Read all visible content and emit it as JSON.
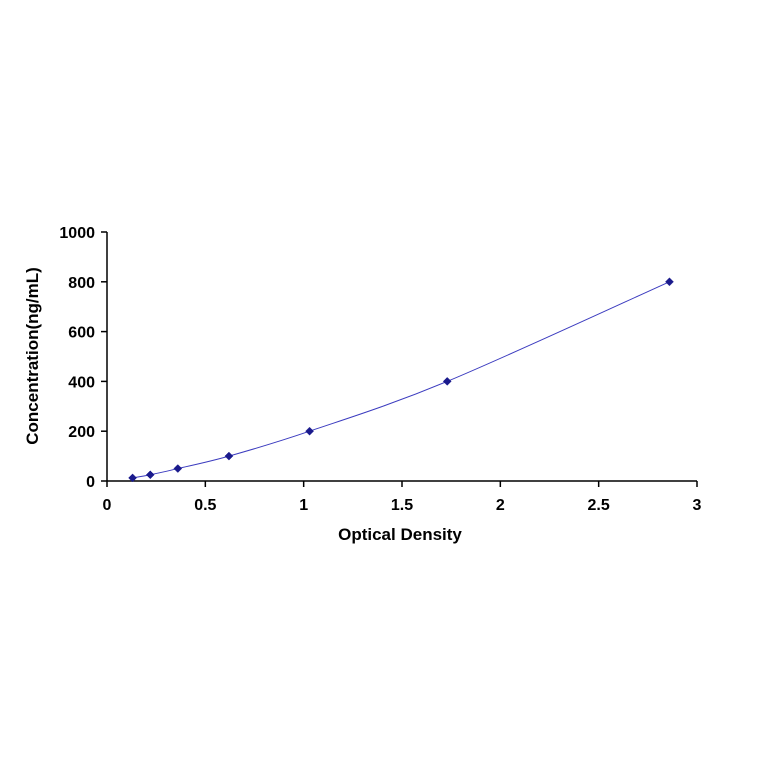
{
  "chart_data": {
    "type": "scatter",
    "title": "",
    "xlabel": "Optical Density",
    "ylabel": "Concentration(ng/mL)",
    "xlim": [
      0,
      3
    ],
    "ylim": [
      0,
      1000
    ],
    "x_ticks": [
      "0",
      "0.5",
      "1",
      "1.5",
      "2",
      "2.5",
      "3"
    ],
    "y_ticks": [
      "0",
      "200",
      "400",
      "600",
      "800",
      "1000"
    ],
    "grid": false,
    "legend": "none",
    "trendline": "smooth curve through points",
    "colors": {
      "marker": "#1a1a8c",
      "line": "#3b3bbf",
      "axis": "#000000"
    },
    "series": [
      {
        "x": [
          0.13,
          0.22,
          0.36,
          0.62,
          1.03,
          1.73,
          2.86
        ],
        "y": [
          12.5,
          25,
          50,
          100,
          200,
          400,
          800
        ]
      }
    ]
  }
}
